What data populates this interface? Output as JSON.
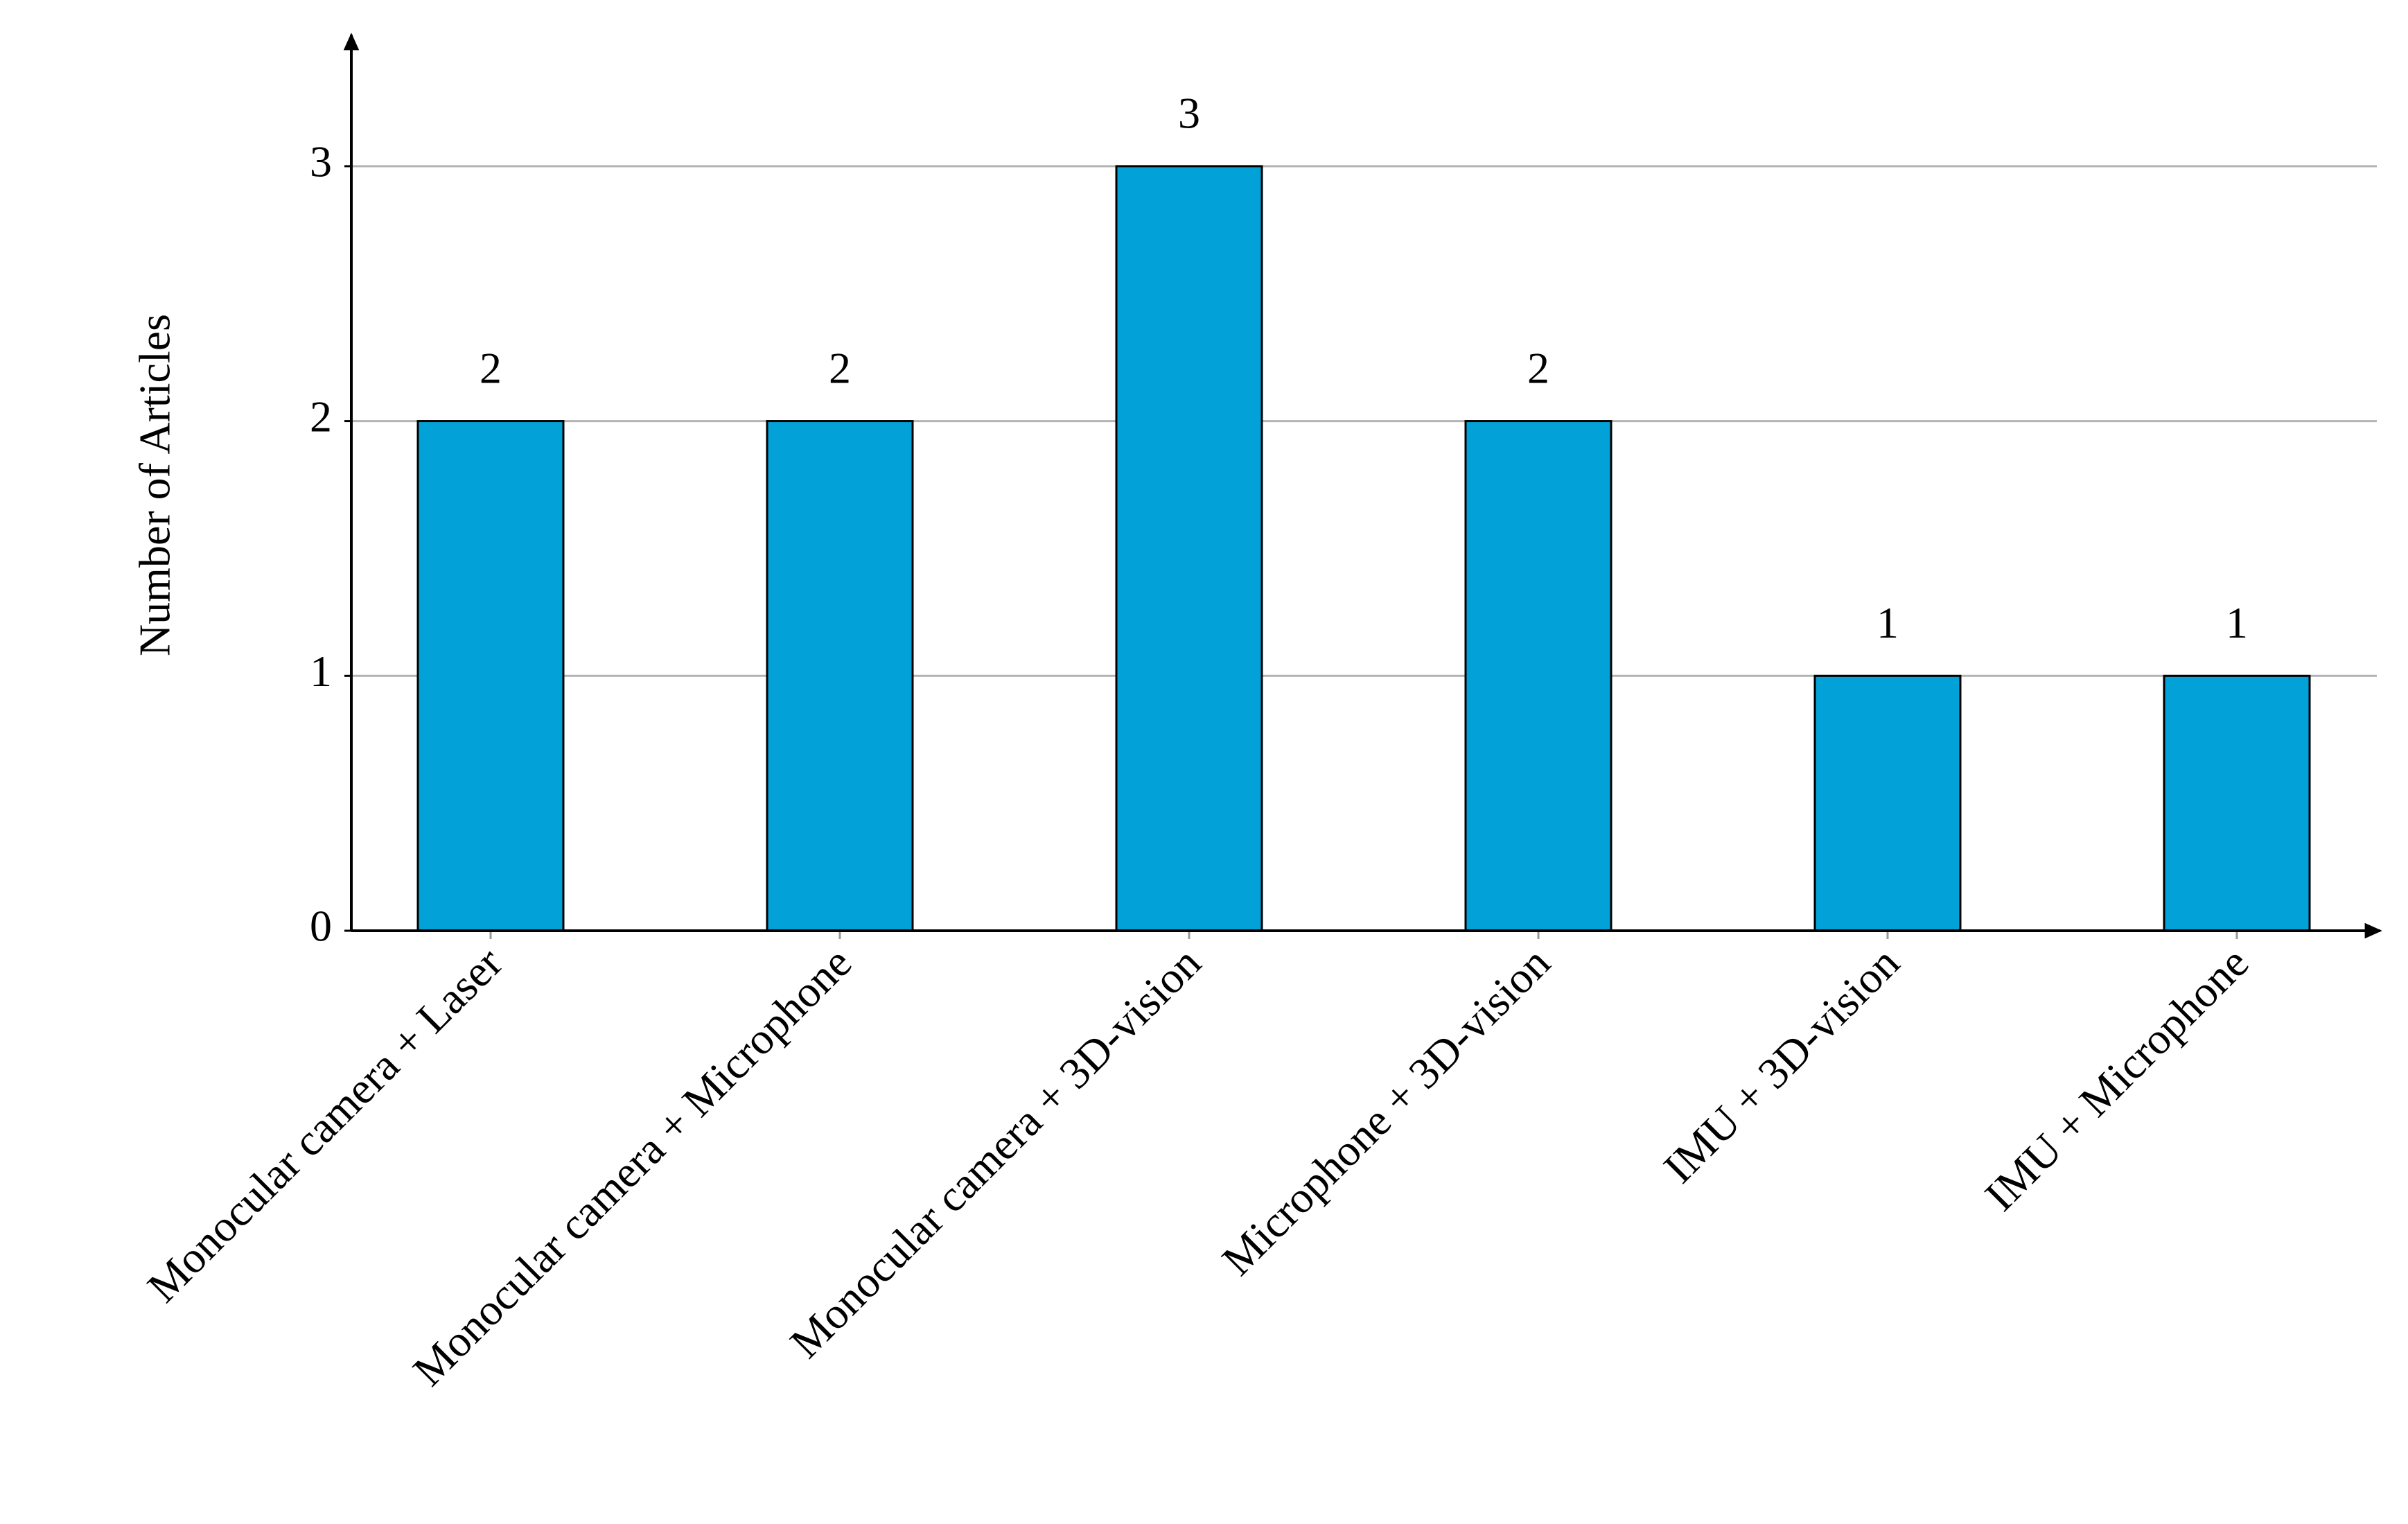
{
  "chart_data": {
    "type": "bar",
    "y_label": "Number of Articles",
    "categories": [
      "Monocular camera + Laser",
      "Monocular camera + Microphone",
      "Monocular camera + 3D-vision",
      "Microphone + 3D-vision",
      "IMU + 3D-vision",
      "IMU + Microphone"
    ],
    "values": [
      2,
      2,
      3,
      2,
      1,
      1
    ],
    "color": "#02a2d8",
    "ylim": [
      0,
      3.5
    ],
    "yticks": [
      0,
      1,
      2,
      3
    ],
    "grid": true
  }
}
